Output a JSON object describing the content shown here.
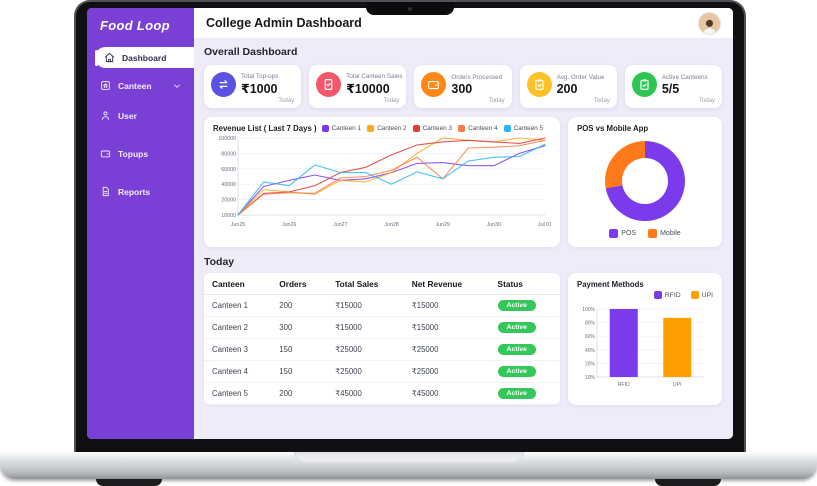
{
  "app": {
    "brand": "Food Loop",
    "header_title": "College Admin Dashboard"
  },
  "colors": {
    "sidebar": "#7a3fd4",
    "accent": "#7c3aed",
    "content_bg": "#efecf9",
    "badge_green": "#34c759",
    "pos": "#7c3aed",
    "mobile": "#ff7a1a",
    "rfid": "#7c3aed",
    "upi": "#ffa000"
  },
  "sidebar": {
    "items": [
      {
        "label": "Dashboard",
        "icon": "home",
        "active": true
      },
      {
        "label": "Canteen",
        "icon": "store",
        "chevron": true
      },
      {
        "label": "User",
        "icon": "user"
      },
      {
        "label": "Topups",
        "icon": "wallet"
      },
      {
        "label": "Reports",
        "icon": "document"
      }
    ]
  },
  "overview": {
    "title": "Overall Dashboard",
    "cards": [
      {
        "label": "Total Top-ups",
        "value": "₹1000",
        "period": "Today",
        "icon": "swap-arrows",
        "color": "#5a52e0"
      },
      {
        "label": "Total Canteen Sales",
        "value": "₹10000",
        "period": "Today",
        "icon": "receipt-check",
        "color": "#f4566c"
      },
      {
        "label": "Orders Processed",
        "value": "300",
        "period": "Today",
        "icon": "wallet",
        "color": "#ff8714"
      },
      {
        "label": "Avg. Order Value",
        "value": "200",
        "period": "Today",
        "icon": "clipboard-check",
        "color": "#ffc226"
      },
      {
        "label": "Active Canteens",
        "value": "5/5",
        "period": "Today",
        "icon": "clipboard-check",
        "color": "#2dc653"
      }
    ]
  },
  "today": {
    "title": "Today",
    "table": {
      "headers": [
        "Canteen",
        "Orders",
        "Total Sales",
        "Net Revenue",
        "Status"
      ],
      "rows": [
        {
          "canteen": "Canteen 1",
          "orders": "200",
          "total_sales": "₹15000",
          "net_revenue": "₹15000",
          "status": "Active"
        },
        {
          "canteen": "Canteen 2",
          "orders": "300",
          "total_sales": "₹15000",
          "net_revenue": "₹15000",
          "status": "Active"
        },
        {
          "canteen": "Canteen 3",
          "orders": "150",
          "total_sales": "₹25000",
          "net_revenue": "₹25000",
          "status": "Active"
        },
        {
          "canteen": "Canteen 4",
          "orders": "150",
          "total_sales": "₹25000",
          "net_revenue": "₹25000",
          "status": "Active"
        },
        {
          "canteen": "Canteen 5",
          "orders": "200",
          "total_sales": "₹45000",
          "net_revenue": "₹45000",
          "status": "Active"
        }
      ]
    }
  },
  "chart_data": [
    {
      "id": "revenue",
      "type": "line",
      "title": "Revenue List ( Last 7 Days )",
      "x_ticks": [
        "Jun25",
        "Jun26",
        "Jun27",
        "Jun28",
        "Jun29",
        "Jun30",
        "Jul 01"
      ],
      "points_per_day": 2,
      "y_ticks": [
        10000,
        20000,
        40000,
        60000,
        80000,
        100000
      ],
      "ylim": [
        10000,
        100000
      ],
      "grid": true,
      "legend_position": "top",
      "series": [
        {
          "name": "Canteen 1",
          "color": "#7c3aed",
          "values": [
            10000,
            37000,
            45000,
            52000,
            45000,
            47000,
            55000,
            67000,
            68000,
            64000,
            64000,
            80000,
            90000
          ]
        },
        {
          "name": "Canteen 2",
          "color": "#fcaa1b",
          "values": [
            10000,
            33000,
            30000,
            27000,
            45000,
            43000,
            55000,
            80000,
            100000,
            97000,
            95000,
            100000,
            97000
          ]
        },
        {
          "name": "Canteen 3",
          "color": "#e23b3b",
          "values": [
            10000,
            28000,
            30000,
            38000,
            55000,
            62000,
            78000,
            91000,
            95000,
            97000,
            95000,
            93000,
            100000
          ]
        },
        {
          "name": "Canteen 4",
          "color": "#ff7a45",
          "values": [
            10000,
            27000,
            29000,
            28000,
            48000,
            50000,
            58000,
            75000,
            47000,
            87000,
            88000,
            90000,
            97000
          ]
        },
        {
          "name": "Canteen 5",
          "color": "#29b6f6",
          "values": [
            10000,
            43000,
            38000,
            65000,
            55000,
            55000,
            40000,
            56000,
            47000,
            70000,
            75000,
            76000,
            92000
          ]
        }
      ]
    },
    {
      "id": "pos_vs_mobile",
      "type": "pie",
      "title": "POS vs Mobile App",
      "slices": [
        {
          "label": "POS",
          "value": 72,
          "color": "#7c3aed"
        },
        {
          "label": "Mobile",
          "value": 28,
          "color": "#ff7a1a"
        }
      ],
      "legend_position": "bottom"
    },
    {
      "id": "payment_methods",
      "type": "bar",
      "title": "Payment Methods",
      "categories": [
        "RFID",
        "UPI"
      ],
      "values": [
        100,
        87
      ],
      "colors": [
        "#7c3aed",
        "#ffa000"
      ],
      "y_ticks": [
        "10%",
        "20%",
        "40%",
        "60%",
        "80%",
        "100%"
      ],
      "legend": [
        "RFID",
        "UPI"
      ],
      "legend_position": "top-right"
    }
  ]
}
